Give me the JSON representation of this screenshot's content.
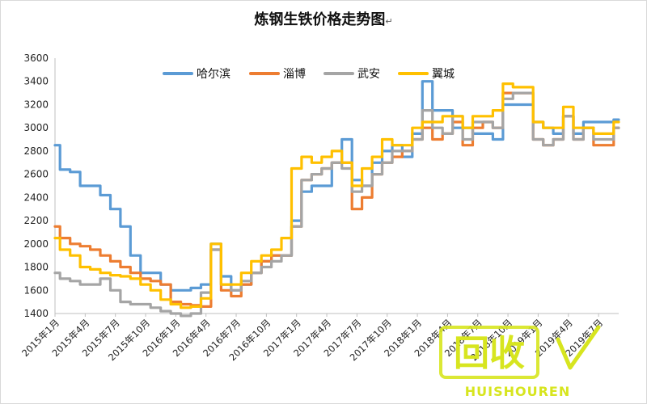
{
  "chart_data": {
    "type": "line",
    "title": "炼钢生铁价格走势图",
    "title_suffix": "↵",
    "ylim": [
      1400,
      3600
    ],
    "yticks": [
      1400,
      1600,
      1800,
      2000,
      2200,
      2400,
      2600,
      2800,
      3000,
      3200,
      3400,
      3600
    ],
    "x_tick_labels": [
      "2015年1月",
      "2015年4月",
      "2015年7月",
      "2015年10月",
      "2016年1月",
      "2016年4月",
      "2016年7月",
      "2016年10月",
      "2017年1月",
      "2017年4月",
      "2017年7月",
      "2017年10月",
      "2018年1月",
      "2018年4月",
      "2018年7月",
      "2018年10月",
      "2019年1月",
      "2019年4月",
      "2019年7月"
    ],
    "x": [
      "2015-01",
      "2015-02",
      "2015-03",
      "2015-04",
      "2015-05",
      "2015-06",
      "2015-07",
      "2015-08",
      "2015-09",
      "2015-10",
      "2015-11",
      "2015-12",
      "2016-01",
      "2016-02",
      "2016-03",
      "2016-04",
      "2016-05",
      "2016-06",
      "2016-07",
      "2016-08",
      "2016-09",
      "2016-10",
      "2016-11",
      "2016-12",
      "2017-01",
      "2017-02",
      "2017-03",
      "2017-04",
      "2017-05",
      "2017-06",
      "2017-07",
      "2017-08",
      "2017-09",
      "2017-10",
      "2017-11",
      "2017-12",
      "2018-01",
      "2018-02",
      "2018-03",
      "2018-04",
      "2018-05",
      "2018-06",
      "2018-07",
      "2018-08",
      "2018-09",
      "2018-10",
      "2018-11",
      "2018-12",
      "2019-01",
      "2019-02",
      "2019-03",
      "2019-04",
      "2019-05",
      "2019-06",
      "2019-07",
      "2019-08",
      "2019-09"
    ],
    "legend_position": "top",
    "grid": false,
    "series": [
      {
        "name": "哈尔滨",
        "color": "#5b9bd5",
        "values": [
          2850,
          2640,
          2620,
          2500,
          2500,
          2420,
          2300,
          2150,
          1900,
          1750,
          1750,
          1650,
          1600,
          1600,
          1620,
          1650,
          2000,
          1720,
          1600,
          1650,
          1750,
          1850,
          1900,
          1900,
          2200,
          2450,
          2500,
          2500,
          2700,
          2900,
          2550,
          2500,
          2700,
          2800,
          2850,
          2750,
          2950,
          3400,
          3150,
          3150,
          3000,
          3000,
          2950,
          2950,
          2900,
          3200,
          3200,
          3200,
          3050,
          3000,
          2950,
          3100,
          2950,
          3050,
          3050,
          3050,
          3070
        ]
      },
      {
        "name": "淄博",
        "color": "#ed7d31",
        "values": [
          2150,
          2050,
          2000,
          1980,
          1950,
          1900,
          1850,
          1800,
          1750,
          1700,
          1680,
          1650,
          1500,
          1480,
          1470,
          1460,
          1950,
          1600,
          1550,
          1650,
          1750,
          1850,
          1900,
          1900,
          2150,
          2550,
          2600,
          2650,
          2700,
          2700,
          2300,
          2400,
          2600,
          2700,
          2750,
          2800,
          2900,
          3000,
          2900,
          2950,
          3050,
          2850,
          3000,
          3050,
          3000,
          3300,
          3300,
          3300,
          2900,
          2850,
          2900,
          3100,
          2900,
          3000,
          2850,
          2850,
          3000
        ]
      },
      {
        "name": "武安",
        "color": "#a5a5a5",
        "values": [
          1750,
          1700,
          1680,
          1650,
          1650,
          1700,
          1600,
          1500,
          1480,
          1480,
          1450,
          1420,
          1400,
          1380,
          1400,
          1580,
          1950,
          1650,
          1600,
          1680,
          1750,
          1800,
          1850,
          1900,
          2150,
          2550,
          2600,
          2650,
          2700,
          2650,
          2450,
          2500,
          2600,
          2700,
          2800,
          2800,
          2900,
          3150,
          3000,
          2950,
          3100,
          2900,
          3050,
          3050,
          3000,
          3250,
          3300,
          3300,
          2900,
          2850,
          2900,
          3100,
          2900,
          3000,
          2900,
          2900,
          3000
        ]
      },
      {
        "name": "翼城",
        "color": "#ffc000",
        "values": [
          2050,
          1950,
          1900,
          1800,
          1780,
          1750,
          1730,
          1720,
          1700,
          1650,
          1600,
          1520,
          1480,
          1450,
          1460,
          1530,
          2000,
          1650,
          1650,
          1750,
          1850,
          1900,
          1950,
          2050,
          2650,
          2750,
          2700,
          2750,
          2800,
          2700,
          2500,
          2650,
          2750,
          2900,
          2850,
          2850,
          3000,
          3050,
          3050,
          3100,
          3100,
          3000,
          3100,
          3100,
          3150,
          3380,
          3350,
          3350,
          3050,
          3000,
          3000,
          3180,
          3000,
          3000,
          2950,
          2950,
          3050
        ]
      }
    ]
  },
  "watermark": {
    "brand": "回收",
    "sub": "HUISHOUREN",
    "color": "#d7e51f"
  }
}
